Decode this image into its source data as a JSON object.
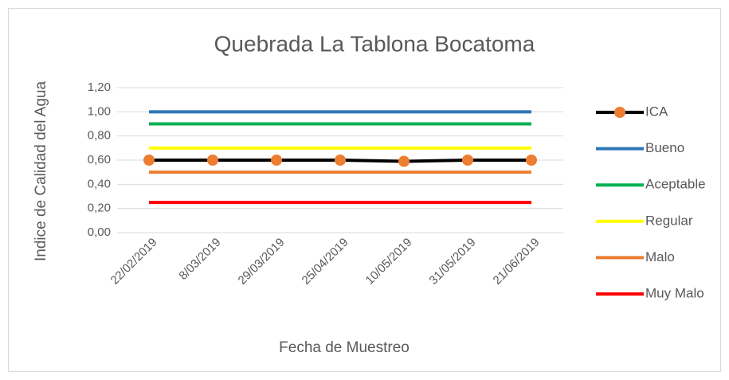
{
  "chart_data": {
    "type": "line",
    "title": "Quebrada La Tablona Bocatoma",
    "x_label": "Fecha de Muestreo",
    "y_label": "Indice de Calidad del Agua",
    "categories": [
      "22/02/2019",
      "8/03/2019",
      "29/03/2019",
      "25/04/2019",
      "10/05/2019",
      "31/05/2019",
      "21/06/2019"
    ],
    "series": [
      {
        "name": "ICA",
        "color": "#000000",
        "marker_color": "#ed7d31",
        "values": [
          0.6,
          0.6,
          0.6,
          0.6,
          0.59,
          0.6,
          0.6
        ]
      },
      {
        "name": "Bueno",
        "color": "#2e75b6",
        "values": [
          1.0,
          1.0,
          1.0,
          1.0,
          1.0,
          1.0,
          1.0
        ]
      },
      {
        "name": "Aceptable",
        "color": "#00b050",
        "values": [
          0.9,
          0.9,
          0.9,
          0.9,
          0.9,
          0.9,
          0.9
        ]
      },
      {
        "name": "Regular",
        "color": "#ffff00",
        "values": [
          0.7,
          0.7,
          0.7,
          0.7,
          0.7,
          0.7,
          0.7
        ]
      },
      {
        "name": "Malo",
        "color": "#ed7d31",
        "values": [
          0.5,
          0.5,
          0.5,
          0.5,
          0.5,
          0.5,
          0.5
        ]
      },
      {
        "name": "Muy Malo",
        "color": "#ff0000",
        "values": [
          0.25,
          0.25,
          0.25,
          0.25,
          0.25,
          0.25,
          0.25
        ]
      }
    ],
    "ylim": [
      0,
      1.2
    ],
    "yticks": [
      {
        "value": 0,
        "label": "0,00"
      },
      {
        "value": 0.2,
        "label": "0,20"
      },
      {
        "value": 0.4,
        "label": "0,40"
      },
      {
        "value": 0.6,
        "label": "0,60"
      },
      {
        "value": 0.8,
        "label": "0,80"
      },
      {
        "value": 1.0,
        "label": "1,00"
      },
      {
        "value": 1.2,
        "label": "1,20"
      }
    ],
    "grid": true,
    "legend": "right"
  }
}
